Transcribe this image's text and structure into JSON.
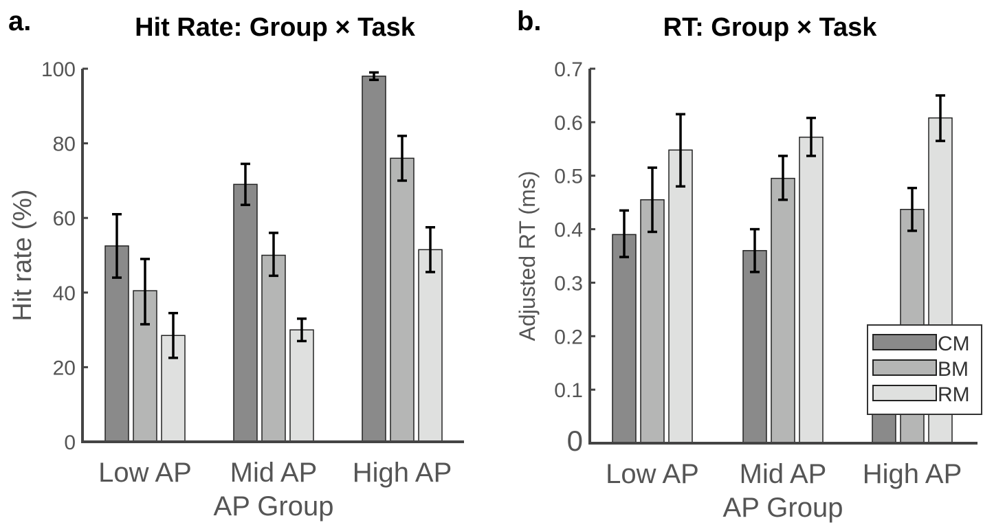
{
  "panels": [
    "a.",
    "b."
  ],
  "legend": [
    "CM",
    "BM",
    "RM"
  ],
  "colors": {
    "CM": "#8a8a8a",
    "BM": "#b5b6b5",
    "RM": "#dfe0df"
  },
  "chart_data": [
    {
      "type": "bar",
      "title": "Hit Rate: Group × Task",
      "xlabel": "AP Group",
      "ylabel": "Hit rate (%)",
      "categories": [
        "Low AP",
        "Mid AP",
        "High AP"
      ],
      "ylim": [
        0,
        100
      ],
      "yticks": [
        0,
        20,
        40,
        60,
        80,
        100
      ],
      "grid": false,
      "series": [
        {
          "name": "CM",
          "values": [
            52.5,
            69,
            98
          ],
          "err_low": [
            44,
            63.5,
            97
          ],
          "err_high": [
            61,
            74.5,
            99
          ]
        },
        {
          "name": "BM",
          "values": [
            40.5,
            50,
            76
          ],
          "err_low": [
            31.5,
            44.5,
            70
          ],
          "err_high": [
            49,
            56,
            82
          ]
        },
        {
          "name": "RM",
          "values": [
            28.5,
            30,
            51.5
          ],
          "err_low": [
            22.5,
            27,
            45.5
          ],
          "err_high": [
            34.5,
            33,
            57.5
          ]
        }
      ]
    },
    {
      "type": "bar",
      "title": "RT: Group × Task",
      "xlabel": "AP Group",
      "ylabel": "Adjusted RT (ms)",
      "categories": [
        "Low AP",
        "Mid AP",
        "High AP"
      ],
      "ylim": [
        0,
        0.7
      ],
      "yticks": [
        "0",
        "0.1",
        "0.2",
        "0.3",
        "0.4",
        "0.5",
        "0.6",
        "0.7"
      ],
      "grid": false,
      "legend_position": "lower-right",
      "series": [
        {
          "name": "CM",
          "values": [
            0.39,
            0.36,
            0.085
          ],
          "err_low": [
            0.348,
            0.32,
            0.06
          ],
          "err_high": [
            0.435,
            0.4,
            0.108
          ]
        },
        {
          "name": "BM",
          "values": [
            0.455,
            0.495,
            0.437
          ],
          "err_low": [
            0.395,
            0.455,
            0.397
          ],
          "err_high": [
            0.515,
            0.537,
            0.477
          ]
        },
        {
          "name": "RM",
          "values": [
            0.548,
            0.572,
            0.608
          ],
          "err_low": [
            0.48,
            0.537,
            0.565
          ],
          "err_high": [
            0.615,
            0.608,
            0.65
          ]
        }
      ]
    }
  ]
}
